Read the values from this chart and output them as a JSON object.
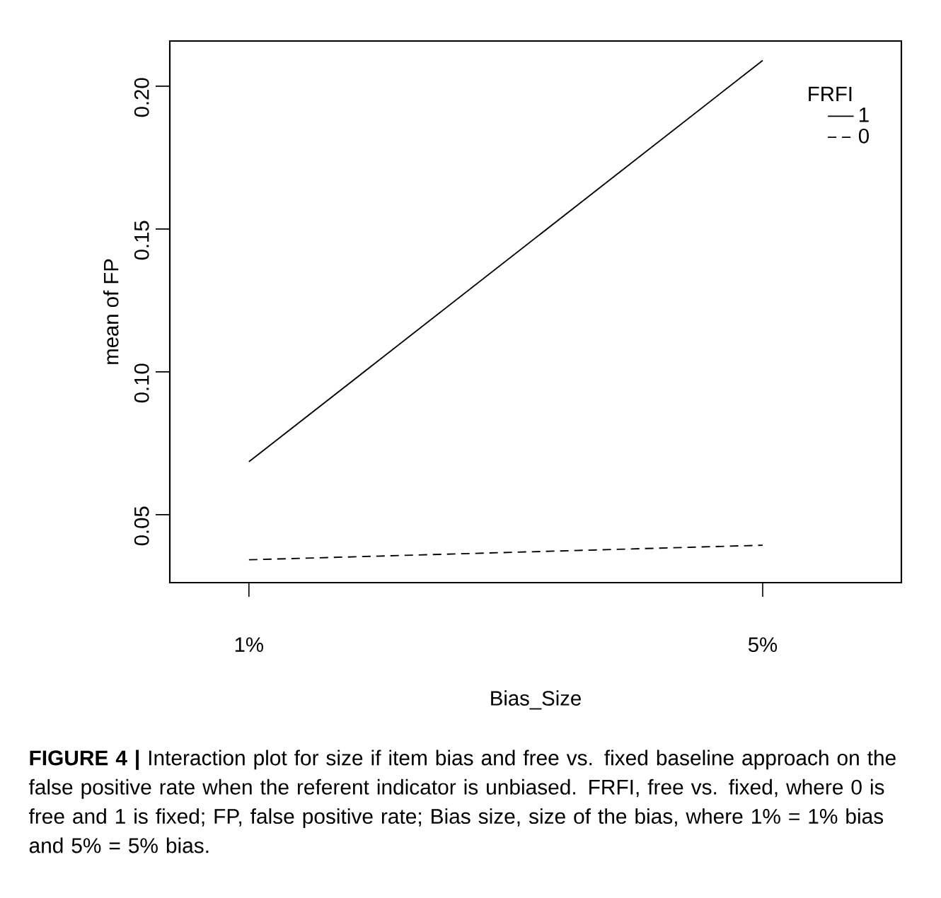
{
  "chart_data": {
    "type": "line",
    "categories": [
      "1%",
      "5%"
    ],
    "series": [
      {
        "name": "1",
        "color": "#000000",
        "line_style": "solid",
        "values": [
          0.0685,
          0.209
        ]
      },
      {
        "name": "0",
        "color": "#000000",
        "line_style": "dashed",
        "values": [
          0.0342,
          0.0393
        ]
      }
    ],
    "xlabel": "Bias_Size",
    "ylabel": "mean of FP",
    "ylim": [
      0.0262,
      0.2158
    ],
    "yticks": [
      {
        "value": 0.05,
        "label": "0.05"
      },
      {
        "value": 0.1,
        "label": "0.10"
      },
      {
        "value": 0.15,
        "label": "0.15"
      },
      {
        "value": 0.2,
        "label": "0.20"
      }
    ],
    "legend": "top right",
    "legend_title": "FRFI",
    "annotations": [
      "**FIGURE 4 |** Interaction plot for size if item bias and free vs. fixed baseline approach on the false positive rate when the referent indicator is unbiased. FRFI, free vs. fixed, where 0 is free and 1 is fixed; FP, false positive rate; Bias size, size of the bias, where 1% = 1% bias and 5% = 5% bias."
    ]
  }
}
